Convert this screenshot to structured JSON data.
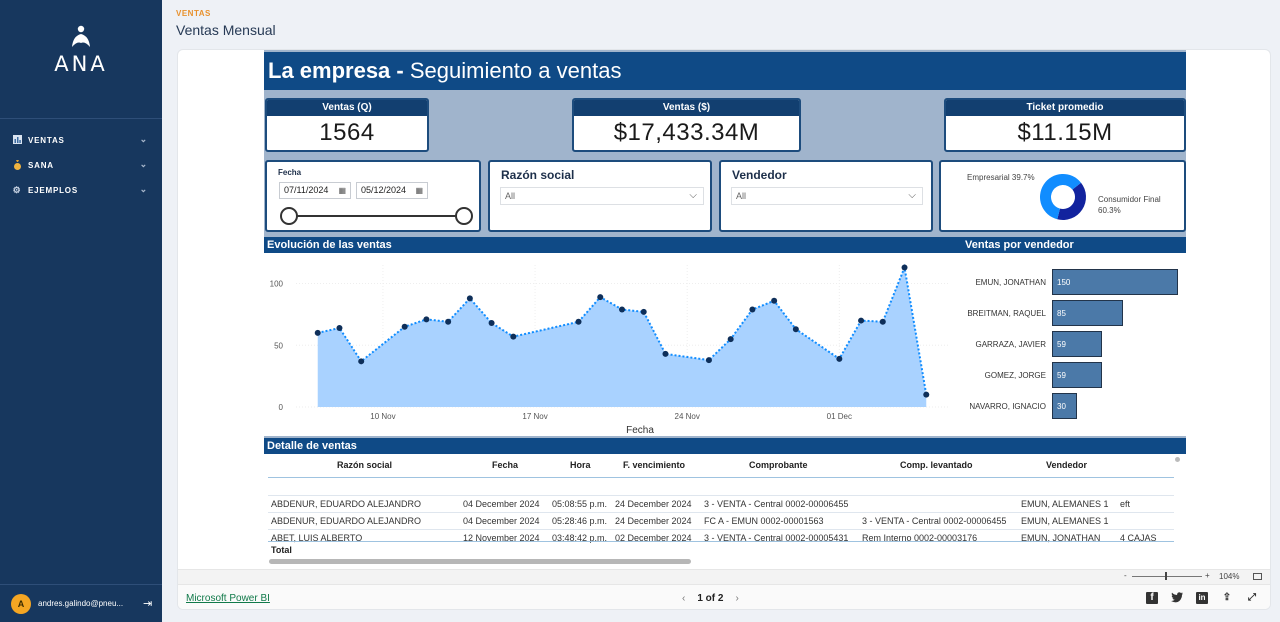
{
  "sidebar": {
    "logo_text": "ANA",
    "nav": [
      {
        "icon": "bar-chart-icon",
        "label": "VENTAS"
      },
      {
        "icon": "money-bag-icon",
        "label": "SANA"
      },
      {
        "icon": "gear-icon",
        "label": "EJEMPLOS"
      }
    ],
    "user": {
      "initial": "A",
      "name": "andres.galindo@pneu..."
    }
  },
  "header": {
    "breadcrumb": "VENTAS",
    "title": "Ventas Mensual"
  },
  "report": {
    "banner": {
      "bold": "La empresa -",
      "rest": "Seguimiento a ventas"
    },
    "kpis": [
      {
        "label": "Ventas (Q)",
        "value": "1564"
      },
      {
        "label": "Ventas ($)",
        "value": "$17,433.34M"
      },
      {
        "label": "Ticket promedio",
        "value": "$11.15M"
      }
    ],
    "date_slicer": {
      "label": "Fecha",
      "start": "07/11/2024",
      "end": "05/12/2024"
    },
    "slicer_razon": {
      "title": "Razón social",
      "value": "All"
    },
    "slicer_vendedor": {
      "title": "Vendedor",
      "value": "All"
    },
    "donut": {
      "slices": [
        {
          "label": "Empresarial",
          "pct": "39.7%",
          "value": 39.7,
          "color": "#12239e"
        },
        {
          "label": "Consumidor Final",
          "pct": "60.3%",
          "value": 60.3,
          "color": "#118dff"
        }
      ]
    },
    "sections": {
      "evolucion": "Evolución de las ventas",
      "vendedor": "Ventas por vendedor",
      "detalle": "Detalle de ventas"
    },
    "table": {
      "headers": [
        "Razón social",
        "Fecha",
        "Hora",
        "F. vencimiento",
        "Comprobante",
        "Comp. levantado",
        "Vendedor"
      ],
      "rows": [
        [
          "ABDENUR, EDUARDO ALEJANDRO",
          "04 December 2024",
          "05:08:55 p.m.",
          "24 December 2024",
          "3 - VENTA - Central 0002-00006455",
          "",
          "EMUN, ALEMANES 1",
          "eft"
        ],
        [
          "ABDENUR, EDUARDO ALEJANDRO",
          "04 December 2024",
          "05:28:46 p.m.",
          "24 December 2024",
          "FC A - EMUN 0002-00001563",
          "3 - VENTA - Central 0002-00006455",
          "EMUN, ALEMANES 1",
          ""
        ],
        [
          "ABET, LUIS ALBERTO",
          "12 November 2024",
          "03:48:42 p.m.",
          "02 December 2024",
          "3 - VENTA - Central 0002-00005431",
          "Rem Interno 0002-00003176",
          "EMUN, JONATHAN",
          "4 CAJAS"
        ]
      ],
      "total_label": "Total"
    }
  },
  "chart_data": [
    {
      "type": "area",
      "xlabel": "Fecha",
      "x_ticks": [
        "10 Nov",
        "17 Nov",
        "24 Nov",
        "01 Dec"
      ],
      "y_ticks": [
        0,
        50,
        100
      ],
      "ylim": [
        0,
        115
      ],
      "x": [
        "2024-11-07",
        "2024-11-08",
        "2024-11-09",
        "2024-11-11",
        "2024-11-12",
        "2024-11-13",
        "2024-11-14",
        "2024-11-15",
        "2024-11-16",
        "2024-11-19",
        "2024-11-20",
        "2024-11-21",
        "2024-11-22",
        "2024-11-23",
        "2024-11-25",
        "2024-11-26",
        "2024-11-27",
        "2024-11-28",
        "2024-11-29",
        "2024-12-01",
        "2024-12-02",
        "2024-12-03",
        "2024-12-04",
        "2024-12-05"
      ],
      "values": [
        60,
        64,
        37,
        65,
        71,
        69,
        88,
        68,
        57,
        69,
        89,
        79,
        77,
        43,
        38,
        55,
        79,
        86,
        63,
        39,
        70,
        69,
        113,
        10
      ],
      "color": "#118dff",
      "fill": "#a9d2ff"
    },
    {
      "type": "bar",
      "orientation": "horizontal",
      "categories": [
        "EMUN, JONATHAN",
        "BREITMAN, RAQUEL",
        "GARRAZA, JAVIER",
        "GOMEZ, JORGE",
        "NAVARRO, IGNACIO"
      ],
      "values": [
        150,
        85,
        59,
        59,
        30
      ],
      "color": "#4b79a8"
    }
  ],
  "footer": {
    "powerbi_label": "Microsoft Power BI",
    "page_indicator": "1 of 2",
    "zoom": "104%",
    "zoom_minus": "-",
    "zoom_plus": "+"
  }
}
